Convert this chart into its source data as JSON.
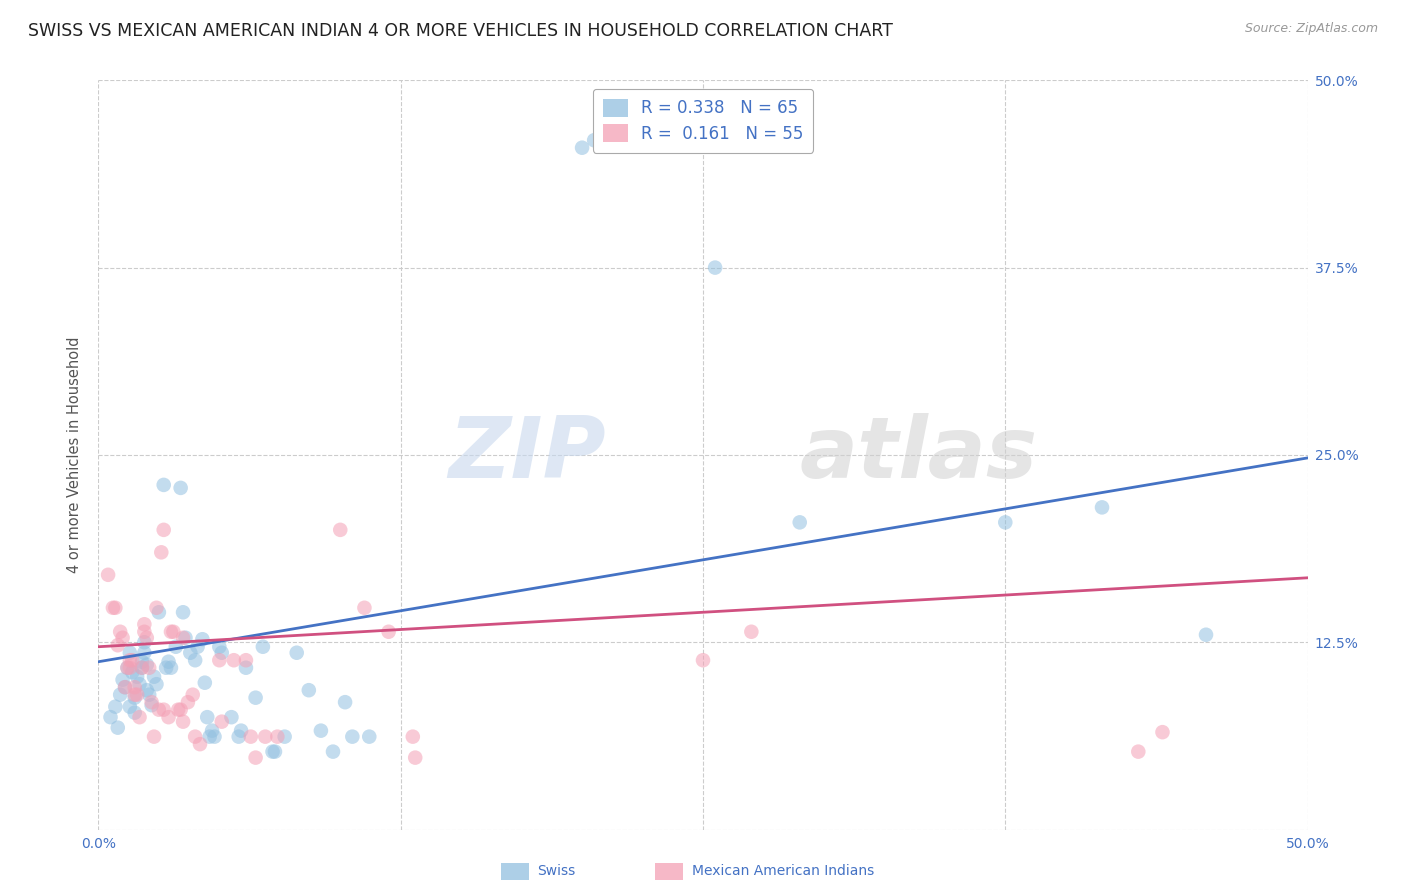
{
  "title": "SWISS VS MEXICAN AMERICAN INDIAN 4 OR MORE VEHICLES IN HOUSEHOLD CORRELATION CHART",
  "source": "Source: ZipAtlas.com",
  "ylabel": "4 or more Vehicles in Household",
  "xlim": [
    0.0,
    0.5
  ],
  "ylim": [
    0.0,
    0.5
  ],
  "yticks": [
    0.0,
    0.125,
    0.25,
    0.375,
    0.5
  ],
  "ytick_labels": [
    "",
    "12.5%",
    "25.0%",
    "37.5%",
    "50.0%"
  ],
  "xticks": [
    0.0,
    0.125,
    0.25,
    0.375,
    0.5
  ],
  "swiss_color": "#92c0e0",
  "mexican_color": "#f4a0b5",
  "swiss_line_color": "#4472c4",
  "mexican_line_color": "#d05080",
  "watermark_zip": "ZIP",
  "watermark_atlas": "atlas",
  "swiss_scatter": [
    [
      0.005,
      0.075
    ],
    [
      0.007,
      0.082
    ],
    [
      0.008,
      0.068
    ],
    [
      0.009,
      0.09
    ],
    [
      0.01,
      0.1
    ],
    [
      0.011,
      0.095
    ],
    [
      0.012,
      0.108
    ],
    [
      0.013,
      0.082
    ],
    [
      0.013,
      0.118
    ],
    [
      0.014,
      0.105
    ],
    [
      0.015,
      0.078
    ],
    [
      0.015,
      0.088
    ],
    [
      0.016,
      0.102
    ],
    [
      0.017,
      0.097
    ],
    [
      0.018,
      0.108
    ],
    [
      0.018,
      0.112
    ],
    [
      0.019,
      0.118
    ],
    [
      0.019,
      0.125
    ],
    [
      0.02,
      0.093
    ],
    [
      0.02,
      0.11
    ],
    [
      0.021,
      0.09
    ],
    [
      0.022,
      0.083
    ],
    [
      0.023,
      0.102
    ],
    [
      0.024,
      0.097
    ],
    [
      0.025,
      0.145
    ],
    [
      0.027,
      0.23
    ],
    [
      0.028,
      0.108
    ],
    [
      0.029,
      0.112
    ],
    [
      0.03,
      0.108
    ],
    [
      0.032,
      0.122
    ],
    [
      0.034,
      0.228
    ],
    [
      0.035,
      0.145
    ],
    [
      0.036,
      0.128
    ],
    [
      0.038,
      0.118
    ],
    [
      0.04,
      0.113
    ],
    [
      0.041,
      0.122
    ],
    [
      0.043,
      0.127
    ],
    [
      0.044,
      0.098
    ],
    [
      0.045,
      0.075
    ],
    [
      0.046,
      0.062
    ],
    [
      0.047,
      0.066
    ],
    [
      0.048,
      0.062
    ],
    [
      0.05,
      0.122
    ],
    [
      0.051,
      0.118
    ],
    [
      0.055,
      0.075
    ],
    [
      0.058,
      0.062
    ],
    [
      0.059,
      0.066
    ],
    [
      0.061,
      0.108
    ],
    [
      0.065,
      0.088
    ],
    [
      0.068,
      0.122
    ],
    [
      0.072,
      0.052
    ],
    [
      0.073,
      0.052
    ],
    [
      0.077,
      0.062
    ],
    [
      0.082,
      0.118
    ],
    [
      0.087,
      0.093
    ],
    [
      0.092,
      0.066
    ],
    [
      0.097,
      0.052
    ],
    [
      0.102,
      0.085
    ],
    [
      0.105,
      0.062
    ],
    [
      0.112,
      0.062
    ],
    [
      0.2,
      0.455
    ],
    [
      0.205,
      0.46
    ],
    [
      0.255,
      0.375
    ],
    [
      0.29,
      0.205
    ],
    [
      0.375,
      0.205
    ],
    [
      0.415,
      0.215
    ],
    [
      0.458,
      0.13
    ]
  ],
  "mexican_scatter": [
    [
      0.004,
      0.17
    ],
    [
      0.006,
      0.148
    ],
    [
      0.007,
      0.148
    ],
    [
      0.008,
      0.123
    ],
    [
      0.009,
      0.132
    ],
    [
      0.01,
      0.128
    ],
    [
      0.011,
      0.095
    ],
    [
      0.012,
      0.108
    ],
    [
      0.013,
      0.108
    ],
    [
      0.013,
      0.113
    ],
    [
      0.014,
      0.113
    ],
    [
      0.015,
      0.09
    ],
    [
      0.015,
      0.095
    ],
    [
      0.016,
      0.09
    ],
    [
      0.017,
      0.075
    ],
    [
      0.018,
      0.108
    ],
    [
      0.019,
      0.132
    ],
    [
      0.019,
      0.137
    ],
    [
      0.02,
      0.128
    ],
    [
      0.021,
      0.108
    ],
    [
      0.022,
      0.085
    ],
    [
      0.023,
      0.062
    ],
    [
      0.024,
      0.148
    ],
    [
      0.025,
      0.08
    ],
    [
      0.026,
      0.185
    ],
    [
      0.027,
      0.2
    ],
    [
      0.027,
      0.08
    ],
    [
      0.029,
      0.075
    ],
    [
      0.03,
      0.132
    ],
    [
      0.031,
      0.132
    ],
    [
      0.033,
      0.08
    ],
    [
      0.034,
      0.08
    ],
    [
      0.035,
      0.072
    ],
    [
      0.035,
      0.128
    ],
    [
      0.037,
      0.085
    ],
    [
      0.039,
      0.09
    ],
    [
      0.04,
      0.062
    ],
    [
      0.042,
      0.057
    ],
    [
      0.05,
      0.113
    ],
    [
      0.051,
      0.072
    ],
    [
      0.056,
      0.113
    ],
    [
      0.061,
      0.113
    ],
    [
      0.063,
      0.062
    ],
    [
      0.065,
      0.048
    ],
    [
      0.069,
      0.062
    ],
    [
      0.074,
      0.062
    ],
    [
      0.1,
      0.2
    ],
    [
      0.11,
      0.148
    ],
    [
      0.12,
      0.132
    ],
    [
      0.13,
      0.062
    ],
    [
      0.131,
      0.048
    ],
    [
      0.25,
      0.113
    ],
    [
      0.27,
      0.132
    ],
    [
      0.43,
      0.052
    ],
    [
      0.44,
      0.065
    ]
  ],
  "swiss_line": [
    [
      0.0,
      0.112
    ],
    [
      0.5,
      0.248
    ]
  ],
  "mexican_line": [
    [
      0.0,
      0.122
    ],
    [
      0.5,
      0.168
    ]
  ],
  "background_color": "#ffffff",
  "grid_color": "#cccccc",
  "title_fontsize": 12.5,
  "axis_label_fontsize": 10.5,
  "tick_fontsize": 10,
  "scatter_size": 110,
  "scatter_alpha": 0.55,
  "line_width": 2.0
}
